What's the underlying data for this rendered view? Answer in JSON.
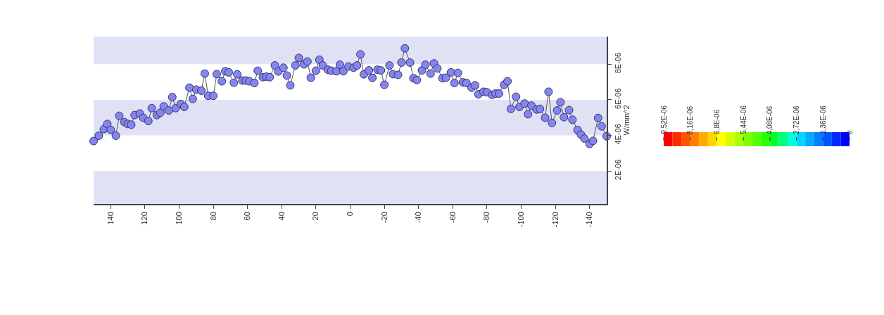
{
  "chart_data": [
    {
      "type": "line",
      "ylabel": "W/mm^2",
      "marker": "circle",
      "line_style": "solid",
      "xlim": [
        150,
        -150
      ],
      "xticks": [
        140,
        120,
        100,
        80,
        60,
        40,
        20,
        0,
        -20,
        -40,
        -60,
        -80,
        -100,
        -120,
        -140
      ],
      "ylim": [
        1.5e-07,
        9.55e-06
      ],
      "yticks": [
        {
          "value": 2e-06,
          "label": "2E-06"
        },
        {
          "value": 4e-06,
          "label": "4E-06"
        },
        {
          "value": 6e-06,
          "label": "6E-06"
        },
        {
          "value": 8e-06,
          "label": "8E-06"
        }
      ],
      "bands": [
        {
          "axis": "y",
          "from": 8e-06,
          "to": 9.55e-06,
          "color": "#e1e1f6"
        },
        {
          "axis": "y",
          "from": 4e-06,
          "to": 6e-06,
          "color": "#e1e1f6"
        },
        {
          "axis": "y",
          "from": 1.5e-07,
          "to": 2e-06,
          "color": "#e1e1f6"
        }
      ],
      "series": [
        {
          "color": "#8585f0",
          "x": [
            150,
            147,
            144,
            142,
            140,
            137,
            135,
            132,
            130,
            128,
            126,
            123,
            121,
            118,
            116,
            113,
            111,
            109,
            106,
            104,
            102,
            99,
            97,
            94,
            92,
            90,
            87,
            85,
            83,
            80,
            78,
            75,
            73,
            71,
            68,
            66,
            63,
            61,
            59,
            56,
            54,
            51,
            49,
            47,
            44,
            42,
            39,
            37,
            35,
            32,
            30,
            27,
            25,
            23,
            20,
            18,
            16,
            13,
            11,
            8,
            6,
            4,
            1,
            -2,
            -4,
            -6,
            -8,
            -11,
            -13,
            -16,
            -18,
            -20,
            -23,
            -25,
            -28,
            -30,
            -32,
            -35,
            -37,
            -39,
            -42,
            -44,
            -47,
            -49,
            -51,
            -54,
            -56,
            -59,
            -61,
            -63,
            -66,
            -68,
            -71,
            -73,
            -75,
            -78,
            -80,
            -83,
            -85,
            -87,
            -90,
            -92,
            -94,
            -97,
            -99,
            -102,
            -104,
            -106,
            -109,
            -111,
            -114,
            -116,
            -118,
            -121,
            -123,
            -125,
            -128,
            -130,
            -133,
            -135,
            -137,
            -140,
            -142,
            -145,
            -147,
            -150
          ],
          "values": [
            3.68e-06,
            3.98e-06,
            4.35e-06,
            4.64e-06,
            4.31e-06,
            3.98e-06,
            5.1e-06,
            4.74e-06,
            4.64e-06,
            4.6e-06,
            5.14e-06,
            5.23e-06,
            4.99e-06,
            4.81e-06,
            5.53e-06,
            5.14e-06,
            5.27e-06,
            5.63e-06,
            5.4e-06,
            6.15e-06,
            5.53e-06,
            5.76e-06,
            5.6e-06,
            6.68e-06,
            6.05e-06,
            6.57e-06,
            6.51e-06,
            7.47e-06,
            6.22e-06,
            6.22e-06,
            7.44e-06,
            7.04e-06,
            7.6e-06,
            7.54e-06,
            6.96e-06,
            7.43e-06,
            7.08e-06,
            7.08e-06,
            7.04e-06,
            6.94e-06,
            7.63e-06,
            7.27e-06,
            7.3e-06,
            7.27e-06,
            7.93e-06,
            7.59e-06,
            7.8e-06,
            7.36e-06,
            6.81e-06,
            7.93e-06,
            8.35e-06,
            7.99e-06,
            8.15e-06,
            7.24e-06,
            7.63e-06,
            8.25e-06,
            7.93e-06,
            7.69e-06,
            7.63e-06,
            7.6e-06,
            7.97e-06,
            7.6e-06,
            7.87e-06,
            7.8e-06,
            7.93e-06,
            8.55e-06,
            7.43e-06,
            7.65e-06,
            7.23e-06,
            7.69e-06,
            7.65e-06,
            6.84e-06,
            7.93e-06,
            7.44e-06,
            7.4e-06,
            8.09e-06,
            8.89e-06,
            8.09e-06,
            7.21e-06,
            7.11e-06,
            7.65e-06,
            7.97e-06,
            7.47e-06,
            8.04e-06,
            7.76e-06,
            7.21e-06,
            7.24e-06,
            7.54e-06,
            6.94e-06,
            7.51e-06,
            6.98e-06,
            6.94e-06,
            6.68e-06,
            6.81e-06,
            6.31e-06,
            6.45e-06,
            6.42e-06,
            6.28e-06,
            6.35e-06,
            6.35e-06,
            6.84e-06,
            7.04e-06,
            5.49e-06,
            6.17e-06,
            5.6e-06,
            5.79e-06,
            5.19e-06,
            5.67e-06,
            5.45e-06,
            5.49e-06,
            4.99e-06,
            6.45e-06,
            4.7e-06,
            5.4e-06,
            5.86e-06,
            5.02e-06,
            5.42e-06,
            4.88e-06,
            4.3e-06,
            4.04e-06,
            3.82e-06,
            3.52e-06,
            3.69e-06,
            4.98e-06,
            4.51e-06,
            3.95e-06
          ]
        }
      ]
    },
    {
      "type": "other",
      "annotations": [
        "9,52E-06",
        "8,16E-06",
        "6,8E-06",
        "5,44E-06",
        "4,08E-06",
        "2,72E-06",
        "1,36E-06",
        "0"
      ]
    }
  ]
}
